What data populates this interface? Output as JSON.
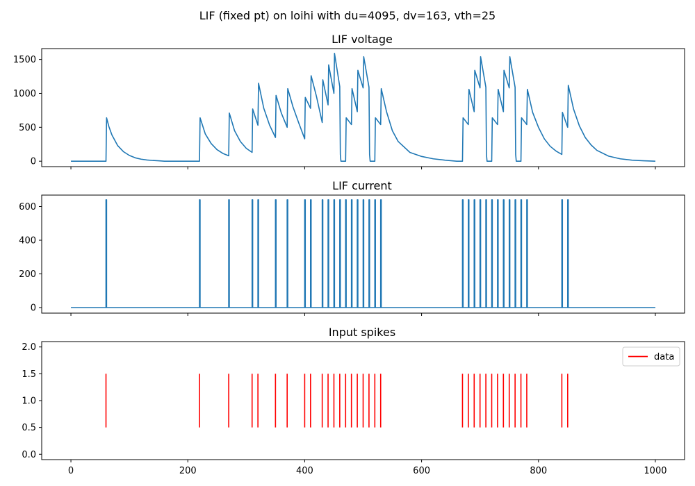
{
  "figure": {
    "suptitle": "LIF (fixed pt) on loihi with du=4095, dv=163, vth=25"
  },
  "colors": {
    "line": "#1f77b4",
    "spike": "#ff0000",
    "axis": "#000000"
  },
  "chart_data": [
    {
      "type": "line",
      "title": "LIF voltage",
      "xlim": [
        -50,
        1050
      ],
      "ylim": [
        -80,
        1660
      ],
      "yticks": [
        0,
        500,
        1000,
        1500
      ],
      "xticks": [
        0,
        200,
        400,
        600,
        800,
        1000
      ],
      "show_xtick_labels": false,
      "grid": false,
      "series": [
        {
          "x": [
            0,
            60,
            61,
            65,
            70,
            80,
            90,
            100,
            110,
            120,
            130,
            140,
            150,
            160,
            170,
            180,
            200,
            220,
            221,
            230,
            240,
            250,
            260,
            270,
            271,
            280,
            290,
            300,
            310,
            311,
            320,
            321,
            330,
            340,
            350,
            351,
            360,
            370,
            371,
            380,
            390,
            400,
            401,
            410,
            411,
            420,
            430,
            431,
            440,
            441,
            450,
            451,
            460,
            461,
            462,
            465,
            470,
            471,
            480,
            481,
            490,
            491,
            500,
            501,
            510,
            511,
            512,
            515,
            520,
            521,
            530,
            531,
            540,
            550,
            560,
            580,
            600,
            620,
            640,
            660,
            670,
            671,
            680,
            681,
            690,
            691,
            700,
            701,
            710,
            711,
            712,
            715,
            720,
            721,
            730,
            731,
            740,
            741,
            750,
            751,
            760,
            761,
            762,
            765,
            770,
            771,
            780,
            781,
            790,
            800,
            810,
            820,
            830,
            840,
            841,
            850,
            851,
            860,
            870,
            880,
            890,
            900,
            920,
            940,
            960,
            980,
            1000
          ],
          "y": [
            0,
            0,
            640,
            510,
            390,
            230,
            140,
            85,
            50,
            30,
            18,
            11,
            6,
            0,
            0,
            0,
            0,
            0,
            640,
            400,
            260,
            170,
            115,
            80,
            710,
            450,
            290,
            190,
            130,
            770,
            530,
            1150,
            780,
            530,
            350,
            970,
            710,
            500,
            1070,
            800,
            560,
            330,
            940,
            780,
            1260,
            960,
            570,
            1200,
            830,
            1420,
            1000,
            1590,
            1100,
            100,
            0,
            0,
            0,
            640,
            540,
            1070,
            730,
            1340,
            1080,
            1540,
            1090,
            100,
            0,
            0,
            0,
            640,
            540,
            1070,
            730,
            450,
            290,
            130,
            70,
            35,
            15,
            0,
            0,
            640,
            540,
            1060,
            730,
            1340,
            1080,
            1540,
            1090,
            100,
            0,
            0,
            0,
            640,
            540,
            1060,
            730,
            1340,
            1080,
            1540,
            1090,
            100,
            0,
            0,
            0,
            640,
            540,
            1060,
            720,
            500,
            330,
            220,
            150,
            100,
            720,
            500,
            1120,
            770,
            520,
            350,
            240,
            160,
            75,
            35,
            15,
            6,
            0
          ]
        }
      ]
    },
    {
      "type": "line",
      "title": "LIF current",
      "xlim": [
        -50,
        1050
      ],
      "ylim": [
        -33,
        668
      ],
      "yticks": [
        0,
        200,
        400,
        600
      ],
      "xticks": [
        0,
        200,
        400,
        600,
        800,
        1000
      ],
      "show_xtick_labels": false,
      "grid": false,
      "spike_times": [
        60,
        220,
        270,
        310,
        320,
        350,
        370,
        400,
        410,
        430,
        440,
        450,
        460,
        470,
        480,
        490,
        500,
        510,
        520,
        530,
        670,
        680,
        690,
        700,
        710,
        720,
        730,
        740,
        750,
        760,
        770,
        780,
        840,
        850
      ],
      "spike_value": 640,
      "baseline": 0,
      "range": [
        0,
        1000
      ]
    },
    {
      "type": "eventplot",
      "title": "Input spikes",
      "xlim": [
        -50,
        1050
      ],
      "ylim": [
        -0.1,
        2.1
      ],
      "yticks": [
        0.0,
        0.5,
        1.0,
        1.5,
        2.0
      ],
      "ytick_labels": [
        "0.0",
        "0.5",
        "1.0",
        "1.5",
        "2.0"
      ],
      "xticks": [
        0,
        200,
        400,
        600,
        800,
        1000
      ],
      "show_xtick_labels": true,
      "legend": {
        "label": "data",
        "position": "upper right"
      },
      "event_span": [
        0.5,
        1.5
      ],
      "events": [
        60,
        220,
        270,
        310,
        320,
        350,
        370,
        400,
        410,
        430,
        440,
        450,
        460,
        470,
        480,
        490,
        500,
        510,
        520,
        530,
        670,
        680,
        690,
        700,
        710,
        720,
        730,
        740,
        750,
        760,
        770,
        780,
        840,
        850
      ]
    }
  ]
}
